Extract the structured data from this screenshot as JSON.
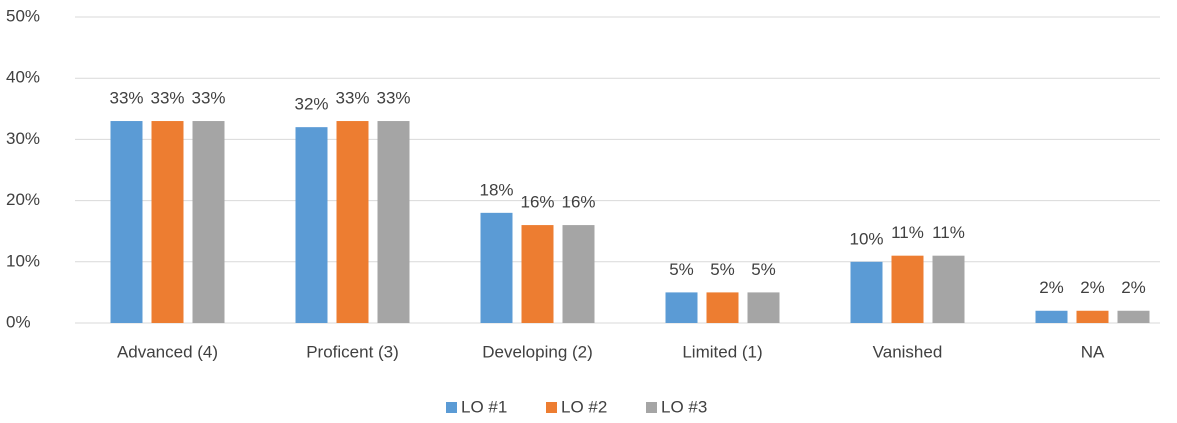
{
  "chart_data": {
    "type": "bar",
    "categories": [
      "Advanced (4)",
      "Proficent (3)",
      "Developing (2)",
      "Limited (1)",
      "Vanished",
      "NA"
    ],
    "series": [
      {
        "name": "LO #1",
        "color": "#5b9bd5",
        "values": [
          33,
          32,
          18,
          5,
          10,
          2
        ],
        "value_labels": [
          "33%",
          "32%",
          "18%",
          "5%",
          "10%",
          "2%"
        ]
      },
      {
        "name": "LO #2",
        "color": "#ed7d31",
        "values": [
          33,
          33,
          16,
          5,
          11,
          2
        ],
        "value_labels": [
          "33%",
          "33%",
          "16%",
          "5%",
          "11%",
          "2%"
        ]
      },
      {
        "name": "LO #3",
        "color": "#a5a5a5",
        "values": [
          33,
          33,
          16,
          5,
          11,
          2
        ],
        "value_labels": [
          "33%",
          "33%",
          "16%",
          "5%",
          "11%",
          "2%"
        ]
      }
    ],
    "ylim": [
      0,
      50
    ],
    "yticks": [
      {
        "value": 0,
        "label": "0%"
      },
      {
        "value": 10,
        "label": "10%"
      },
      {
        "value": 20,
        "label": "20%"
      },
      {
        "value": 30,
        "label": "30%"
      },
      {
        "value": 40,
        "label": "40%"
      },
      {
        "value": 50,
        "label": "50%"
      }
    ],
    "grid": true,
    "legend": "bottom"
  }
}
